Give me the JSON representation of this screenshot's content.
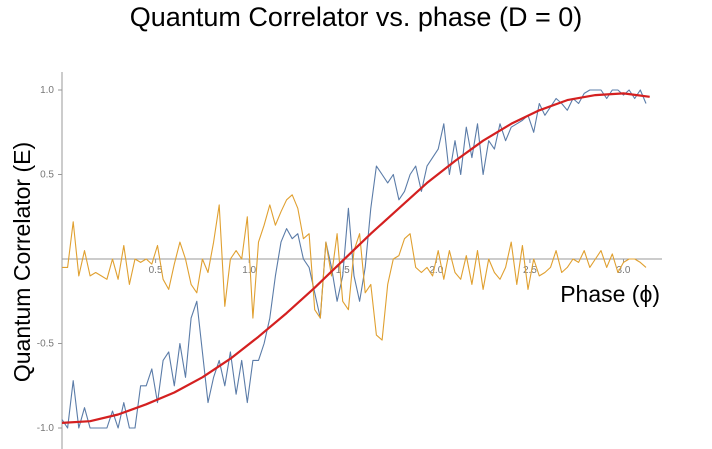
{
  "chart_data": {
    "type": "line",
    "title": "Quantum Correlator vs. phase (D = 0)",
    "xlabel": "Phase (ϕ)",
    "ylabel": "Quantum Correlator (E)",
    "xlim": [
      0,
      3.14159
    ],
    "ylim": [
      -1.1,
      1.1
    ],
    "x_ticks": [
      0.5,
      1.0,
      1.5,
      2.0,
      2.5,
      3.0
    ],
    "x_tick_labels": [
      "0.5",
      "1.0",
      "1.5",
      "2.0",
      "2.5",
      "3.0"
    ],
    "y_ticks": [
      -1.0,
      -0.5,
      0.5,
      1.0
    ],
    "y_tick_labels": [
      "-1.0",
      "-0.5",
      "0.5",
      "1.0"
    ],
    "grid": false,
    "series": [
      {
        "color": "#5b7ca8",
        "x": [
          0.0,
          0.03,
          0.06,
          0.09,
          0.12,
          0.15,
          0.18,
          0.21,
          0.24,
          0.27,
          0.3,
          0.33,
          0.36,
          0.39,
          0.42,
          0.45,
          0.48,
          0.51,
          0.54,
          0.57,
          0.6,
          0.63,
          0.66,
          0.69,
          0.72,
          0.75,
          0.78,
          0.81,
          0.84,
          0.87,
          0.9,
          0.93,
          0.96,
          0.99,
          1.02,
          1.05,
          1.08,
          1.11,
          1.14,
          1.17,
          1.2,
          1.23,
          1.26,
          1.29,
          1.32,
          1.35,
          1.38,
          1.41,
          1.44,
          1.47,
          1.5,
          1.53,
          1.56,
          1.59,
          1.62,
          1.65,
          1.68,
          1.71,
          1.74,
          1.77,
          1.8,
          1.83,
          1.86,
          1.89,
          1.92,
          1.95,
          1.98,
          2.01,
          2.04,
          2.07,
          2.1,
          2.13,
          2.16,
          2.19,
          2.22,
          2.25,
          2.28,
          2.31,
          2.34,
          2.37,
          2.4,
          2.43,
          2.46,
          2.49,
          2.52,
          2.55,
          2.58,
          2.61,
          2.64,
          2.67,
          2.7,
          2.73,
          2.76,
          2.79,
          2.82,
          2.85,
          2.88,
          2.91,
          2.94,
          2.97,
          3.0,
          3.03,
          3.06,
          3.09,
          3.12
        ],
        "values": [
          -0.95,
          -1.0,
          -0.72,
          -1.0,
          -0.88,
          -1.0,
          -1.0,
          -1.0,
          -1.0,
          -0.9,
          -1.0,
          -0.85,
          -1.0,
          -1.0,
          -0.75,
          -0.75,
          -0.65,
          -0.85,
          -0.6,
          -0.55,
          -0.75,
          -0.5,
          -0.7,
          -0.35,
          -0.25,
          -0.55,
          -0.85,
          -0.7,
          -0.6,
          -0.75,
          -0.55,
          -0.8,
          -0.6,
          -0.85,
          -0.6,
          -0.6,
          -0.5,
          -0.35,
          -0.1,
          0.1,
          0.18,
          0.12,
          0.15,
          0.0,
          -0.05,
          -0.2,
          -0.35,
          0.1,
          -0.05,
          -0.25,
          -0.1,
          0.3,
          -0.1,
          -0.25,
          -0.05,
          0.3,
          0.55,
          0.5,
          0.45,
          0.5,
          0.35,
          0.4,
          0.5,
          0.55,
          0.4,
          0.55,
          0.6,
          0.65,
          0.8,
          0.5,
          0.7,
          0.5,
          0.78,
          0.6,
          0.8,
          0.5,
          0.7,
          0.65,
          0.8,
          0.7,
          0.78,
          0.8,
          0.82,
          0.85,
          0.75,
          0.92,
          0.85,
          0.9,
          0.95,
          0.92,
          0.88,
          0.95,
          0.92,
          0.98,
          1.0,
          1.0,
          1.0,
          0.95,
          1.0,
          1.0,
          0.97,
          1.0,
          0.95,
          1.0,
          0.92
        ]
      },
      {
        "color": "#e0a030",
        "x": [
          0.0,
          0.03,
          0.06,
          0.09,
          0.12,
          0.15,
          0.18,
          0.21,
          0.24,
          0.27,
          0.3,
          0.33,
          0.36,
          0.39,
          0.42,
          0.45,
          0.48,
          0.51,
          0.54,
          0.57,
          0.6,
          0.63,
          0.66,
          0.69,
          0.72,
          0.75,
          0.78,
          0.81,
          0.84,
          0.87,
          0.9,
          0.93,
          0.96,
          0.99,
          1.02,
          1.05,
          1.08,
          1.11,
          1.14,
          1.17,
          1.2,
          1.23,
          1.26,
          1.29,
          1.32,
          1.35,
          1.38,
          1.41,
          1.44,
          1.47,
          1.5,
          1.53,
          1.56,
          1.59,
          1.62,
          1.65,
          1.68,
          1.71,
          1.74,
          1.77,
          1.8,
          1.83,
          1.86,
          1.89,
          1.92,
          1.95,
          1.98,
          2.01,
          2.04,
          2.07,
          2.1,
          2.13,
          2.16,
          2.19,
          2.22,
          2.25,
          2.28,
          2.31,
          2.34,
          2.37,
          2.4,
          2.43,
          2.46,
          2.49,
          2.52,
          2.55,
          2.58,
          2.61,
          2.64,
          2.67,
          2.7,
          2.73,
          2.76,
          2.79,
          2.82,
          2.85,
          2.88,
          2.91,
          2.94,
          2.97,
          3.0,
          3.03,
          3.06,
          3.09,
          3.12
        ],
        "values": [
          -0.05,
          -0.05,
          0.22,
          -0.1,
          0.05,
          -0.1,
          -0.08,
          -0.1,
          -0.12,
          0.0,
          -0.12,
          0.08,
          -0.15,
          0.0,
          -0.02,
          0.0,
          -0.03,
          0.08,
          -0.12,
          -0.18,
          -0.03,
          0.1,
          0.0,
          -0.15,
          -0.2,
          0.0,
          -0.08,
          0.1,
          0.32,
          -0.28,
          0.0,
          0.05,
          0.0,
          0.25,
          -0.35,
          0.1,
          0.2,
          0.32,
          0.2,
          0.28,
          0.35,
          0.38,
          0.3,
          0.12,
          0.15,
          -0.3,
          -0.35,
          0.1,
          -0.1,
          0.15,
          -0.25,
          -0.3,
          0.05,
          0.15,
          -0.2,
          -0.15,
          -0.45,
          -0.48,
          -0.15,
          0.0,
          0.02,
          0.12,
          0.15,
          -0.05,
          -0.08,
          -0.05,
          -0.1,
          0.05,
          -0.12,
          0.05,
          -0.08,
          -0.12,
          0.02,
          -0.15,
          0.05,
          -0.18,
          0.0,
          -0.08,
          -0.12,
          -0.05,
          0.1,
          -0.15,
          0.08,
          -0.18,
          0.0,
          -0.1,
          -0.08,
          -0.05,
          0.05,
          -0.08,
          -0.05,
          0.0,
          -0.02,
          0.05,
          -0.05,
          0.0,
          0.05,
          -0.05,
          0.03,
          -0.08,
          -0.02,
          0.0,
          0.0,
          -0.02,
          -0.05
        ]
      },
      {
        "color": "#d42020",
        "x": [
          0.0,
          0.15,
          0.3,
          0.45,
          0.6,
          0.75,
          0.9,
          1.05,
          1.2,
          1.35,
          1.5,
          1.65,
          1.8,
          1.95,
          2.1,
          2.25,
          2.4,
          2.55,
          2.7,
          2.85,
          3.0,
          3.14
        ],
        "values": [
          -0.97,
          -0.96,
          -0.92,
          -0.86,
          -0.79,
          -0.7,
          -0.59,
          -0.46,
          -0.32,
          -0.17,
          -0.01,
          0.15,
          0.3,
          0.45,
          0.58,
          0.7,
          0.8,
          0.88,
          0.94,
          0.97,
          0.98,
          0.96
        ]
      }
    ]
  }
}
